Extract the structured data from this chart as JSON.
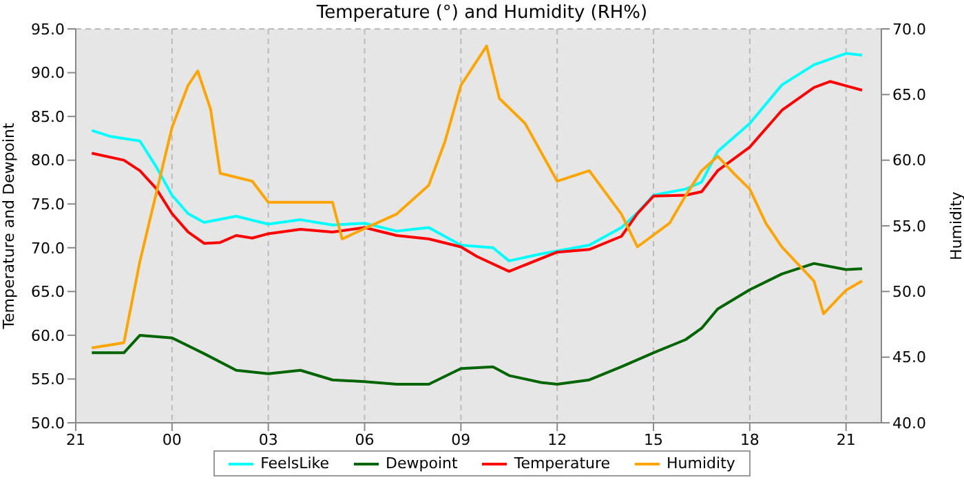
{
  "chart_data": {
    "type": "line",
    "title": "Temperature (°) and Humidity (RH%)",
    "ylabel": "Temperature and Dewpoint",
    "y2label": "Humidity",
    "xlim": [
      "--01-01T21:00",
      "--01-02T22:06"
    ],
    "xticks": [
      {
        "value": "--01-01T21:00",
        "label": "21"
      },
      {
        "value": "--01-02T00:00",
        "label": "00"
      },
      {
        "value": "--01-02T03:00",
        "label": "03"
      },
      {
        "value": "--01-02T06:00",
        "label": "06"
      },
      {
        "value": "--01-02T09:00",
        "label": "09"
      },
      {
        "value": "--01-02T12:00",
        "label": "12"
      },
      {
        "value": "--01-02T15:00",
        "label": "15"
      },
      {
        "value": "--01-02T18:00",
        "label": "18"
      },
      {
        "value": "--01-02T21:00",
        "label": "21"
      }
    ],
    "ylim": [
      50,
      95
    ],
    "yticks": [
      {
        "value": 50,
        "label": "50.0"
      },
      {
        "value": 55,
        "label": "55.0"
      },
      {
        "value": 60,
        "label": "60.0"
      },
      {
        "value": 65,
        "label": "65.0"
      },
      {
        "value": 70,
        "label": "70.0"
      },
      {
        "value": 75,
        "label": "75.0"
      },
      {
        "value": 80,
        "label": "80.0"
      },
      {
        "value": 85,
        "label": "85.0"
      },
      {
        "value": 90,
        "label": "90.0"
      },
      {
        "value": 95,
        "label": "95.0"
      }
    ],
    "y2lim": [
      40,
      70
    ],
    "y2ticks": [
      {
        "value": 40,
        "label": "40.0"
      },
      {
        "value": 45,
        "label": "45.0"
      },
      {
        "value": 50,
        "label": "50.0"
      },
      {
        "value": 55,
        "label": "55.0"
      },
      {
        "value": 60,
        "label": "60.0"
      },
      {
        "value": 65,
        "label": "65.0"
      },
      {
        "value": 70,
        "label": "70.0"
      }
    ],
    "grid": true,
    "legend": "bottom",
    "marker": "none",
    "line_style": "solid",
    "series": [
      {
        "name": "FeelsLike",
        "color": "#00ffff",
        "x": [
          "--01-01T21:30",
          "--01-01T22:06",
          "--01-01T23:00",
          "--01-01T23:30",
          "--01-02T00:00",
          "--01-02T00:30",
          "--01-02T01:00",
          "--01-02T02:00",
          "--01-02T03:00",
          "--01-02T04:00",
          "--01-02T05:00",
          "--01-02T06:00",
          "--01-02T07:00",
          "--01-02T08:00",
          "--01-02T09:00",
          "--01-02T10:00",
          "--01-02T10:30",
          "--01-02T11:30",
          "--01-02T13:00",
          "--01-02T14:00",
          "--01-02T14:30",
          "--01-02T15:00",
          "--01-02T16:00",
          "--01-02T16:30",
          "--01-02T17:00",
          "--01-02T18:00",
          "--01-02T19:00",
          "--01-02T20:00",
          "--01-02T21:00",
          "--01-02T21:30"
        ],
        "values": [
          83.4,
          82.7,
          82.2,
          79.3,
          76,
          73.9,
          72.9,
          73.6,
          72.7,
          73.2,
          72.6,
          72.8,
          71.9,
          72.3,
          70.3,
          70,
          68.5,
          69.3,
          70.3,
          72.3,
          74,
          76,
          76.7,
          77.5,
          81,
          84.2,
          88.6,
          90.9,
          92.2,
          92
        ]
      },
      {
        "name": "Dewpoint",
        "color": "#006400",
        "x": [
          "--01-01T21:30",
          "--01-01T22:30",
          "--01-01T23:00",
          "--01-02T00:00",
          "--01-02T01:00",
          "--01-02T02:00",
          "--01-02T03:00",
          "--01-02T04:00",
          "--01-02T05:00",
          "--01-02T06:00",
          "--01-02T07:00",
          "--01-02T08:00",
          "--01-02T09:00",
          "--01-02T10:00",
          "--01-02T10:30",
          "--01-02T11:30",
          "--01-02T12:00",
          "--01-02T13:00",
          "--01-02T14:00",
          "--01-02T15:00",
          "--01-02T16:00",
          "--01-02T16:30",
          "--01-02T17:00",
          "--01-02T18:00",
          "--01-02T19:00",
          "--01-02T20:00",
          "--01-02T21:00",
          "--01-02T21:30"
        ],
        "values": [
          58,
          58,
          60,
          59.7,
          57.9,
          56,
          55.6,
          56,
          54.9,
          54.7,
          54.4,
          54.4,
          56.2,
          56.4,
          55.4,
          54.6,
          54.4,
          54.9,
          56.4,
          58,
          59.5,
          60.8,
          63,
          65.2,
          67,
          68.2,
          67.5,
          67.6
        ]
      },
      {
        "name": "Temperature",
        "color": "#ff0000",
        "x": [
          "--01-01T21:30",
          "--01-01T22:30",
          "--01-01T23:00",
          "--01-01T23:30",
          "--01-02T00:00",
          "--01-02T00:30",
          "--01-02T01:00",
          "--01-02T01:30",
          "--01-02T02:00",
          "--01-02T02:30",
          "--01-02T03:00",
          "--01-02T04:00",
          "--01-02T05:00",
          "--01-02T06:00",
          "--01-02T07:00",
          "--01-02T08:00",
          "--01-02T09:00",
          "--01-02T09:30",
          "--01-02T10:30",
          "--01-02T12:00",
          "--01-02T13:00",
          "--01-02T14:00",
          "--01-02T14:30",
          "--01-02T15:00",
          "--01-02T16:00",
          "--01-02T16:30",
          "--01-02T17:00",
          "--01-02T18:00",
          "--01-02T19:00",
          "--01-02T20:00",
          "--01-02T20:30",
          "--01-02T21:00",
          "--01-02T21:30"
        ],
        "values": [
          80.8,
          80,
          78.8,
          76.8,
          73.9,
          71.8,
          70.5,
          70.6,
          71.4,
          71.1,
          71.6,
          72.1,
          71.8,
          72.3,
          71.4,
          71,
          70.1,
          69,
          67.3,
          69.5,
          69.8,
          71.3,
          73.9,
          75.9,
          76,
          76.4,
          78.8,
          81.5,
          85.7,
          88.3,
          89,
          88.5,
          88
        ]
      },
      {
        "name": "Humidity",
        "color": "#ffa500",
        "axis": "y2",
        "x": [
          "--01-01T21:30",
          "--01-01T22:30",
          "--01-01T23:00",
          "--01-01T23:30",
          "--01-02T00:00",
          "--01-02T00:30",
          "--01-02T00:48",
          "--01-02T01:12",
          "--01-02T01:30",
          "--01-02T02:30",
          "--01-02T03:00",
          "--01-02T04:00",
          "--01-02T05:00",
          "--01-02T05:18",
          "--01-02T06:00",
          "--01-02T07:00",
          "--01-02T08:00",
          "--01-02T08:30",
          "--01-02T09:00",
          "--01-02T09:48",
          "--01-02T10:12",
          "--01-02T11:00",
          "--01-02T12:00",
          "--01-02T13:00",
          "--01-02T14:00",
          "--01-02T14:30",
          "--01-02T15:30",
          "--01-02T16:00",
          "--01-02T16:30",
          "--01-02T17:00",
          "--01-02T17:30",
          "--01-02T18:00",
          "--01-02T18:30",
          "--01-02T19:00",
          "--01-02T20:00",
          "--01-02T20:18",
          "--01-02T21:00",
          "--01-02T21:30"
        ],
        "values": [
          45.7,
          46.1,
          52.3,
          57.4,
          62.5,
          65.7,
          66.8,
          63.9,
          59,
          58.4,
          56.8,
          56.8,
          56.8,
          54,
          54.8,
          55.9,
          58.1,
          61.4,
          65.7,
          68.7,
          64.7,
          62.8,
          58.4,
          59.2,
          55.9,
          53.4,
          55.2,
          57.3,
          59.2,
          60.3,
          59,
          57.8,
          55.2,
          53.4,
          50.8,
          48.3,
          50.1,
          50.8
        ]
      }
    ]
  }
}
